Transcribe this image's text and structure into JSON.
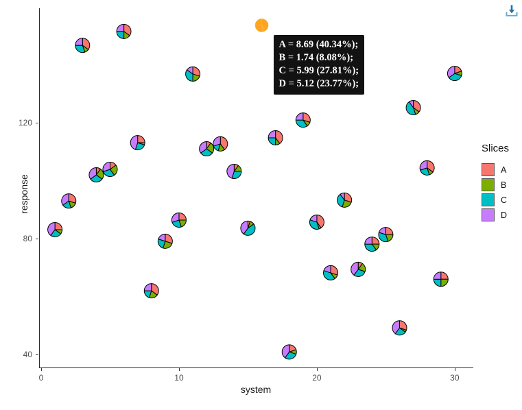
{
  "toolbar": {
    "download_icon": "arrow-down-into-tray",
    "download_color_arrow": "#2272b0",
    "download_color_tray": "#68a8d0"
  },
  "tooltip": {
    "lines": [
      "A = 8.69 (40.34%);",
      "B = 1.74 (8.08%);",
      "C = 5.99 (27.81%);",
      "D = 5.12 (23.77%);"
    ],
    "background": "#121212",
    "text_color": "#ffffff"
  },
  "chart_data": {
    "type": "scatter-pie",
    "title": "",
    "xlabel": "system",
    "ylabel": "response",
    "x_ticks": [
      0,
      10,
      20,
      30
    ],
    "y_ticks": [
      40,
      80,
      120
    ],
    "xlim": [
      -0.15,
      31.35
    ],
    "ylim": [
      35.3,
      159.5
    ],
    "grid": false,
    "legend": {
      "title": "Slices",
      "position": "right",
      "entries": [
        {
          "label": "A",
          "color": "#F8766D"
        },
        {
          "label": "B",
          "color": "#7CAE00"
        },
        {
          "label": "C",
          "color": "#00BFC4"
        },
        {
          "label": "D",
          "color": "#C77CFF"
        }
      ]
    },
    "highlight_color": "#FFA51E",
    "highlight_stroke": "#f5b84d",
    "pie_radius_px": 10.5,
    "points": [
      {
        "x": 1,
        "y": 83.1,
        "slices": [
          25,
          10,
          25,
          40
        ]
      },
      {
        "x": 2,
        "y": 93.0,
        "slices": [
          30,
          15,
          20,
          35
        ]
      },
      {
        "x": 3,
        "y": 146.7,
        "slices": [
          35,
          10,
          30,
          25
        ]
      },
      {
        "x": 4,
        "y": 102.0,
        "slices": [
          10,
          25,
          30,
          35
        ]
      },
      {
        "x": 5,
        "y": 103.9,
        "slices": [
          15,
          25,
          30,
          30
        ]
      },
      {
        "x": 6,
        "y": 151.5,
        "slices": [
          35,
          15,
          25,
          25
        ]
      },
      {
        "x": 7,
        "y": 113.1,
        "slices": [
          25,
          5,
          25,
          45
        ]
      },
      {
        "x": 8,
        "y": 62.0,
        "slices": [
          35,
          20,
          20,
          25
        ]
      },
      {
        "x": 9,
        "y": 79.1,
        "slices": [
          30,
          25,
          25,
          20
        ]
      },
      {
        "x": 10,
        "y": 86.4,
        "slices": [
          25,
          20,
          25,
          30
        ]
      },
      {
        "x": 11,
        "y": 136.8,
        "slices": [
          30,
          20,
          35,
          15
        ]
      },
      {
        "x": 12,
        "y": 111.0,
        "slices": [
          10,
          25,
          30,
          35
        ]
      },
      {
        "x": 13,
        "y": 112.7,
        "slices": [
          40,
          15,
          15,
          30
        ]
      },
      {
        "x": 14,
        "y": 103.2,
        "slices": [
          10,
          15,
          30,
          45
        ]
      },
      {
        "x": 15,
        "y": 83.6,
        "slices": [
          5,
          10,
          45,
          40
        ]
      },
      {
        "x": 16,
        "y": 153.6,
        "slices": [
          40.34,
          8.08,
          27.81,
          23.77
        ],
        "highlighted": true,
        "values": {
          "A": 8.69,
          "B": 1.74,
          "C": 5.99,
          "D": 5.12
        }
      },
      {
        "x": 17,
        "y": 114.8,
        "slices": [
          40,
          10,
          25,
          25
        ]
      },
      {
        "x": 18,
        "y": 40.9,
        "slices": [
          20,
          10,
          30,
          40
        ]
      },
      {
        "x": 19,
        "y": 120.9,
        "slices": [
          30,
          10,
          35,
          25
        ]
      },
      {
        "x": 20,
        "y": 85.7,
        "slices": [
          40,
          5,
          35,
          20
        ]
      },
      {
        "x": 21,
        "y": 68.2,
        "slices": [
          30,
          10,
          40,
          20
        ]
      },
      {
        "x": 22,
        "y": 93.3,
        "slices": [
          30,
          25,
          35,
          10
        ]
      },
      {
        "x": 23,
        "y": 69.4,
        "slices": [
          10,
          20,
          30,
          40
        ]
      },
      {
        "x": 24,
        "y": 78.1,
        "slices": [
          25,
          15,
          35,
          25
        ]
      },
      {
        "x": 25,
        "y": 81.4,
        "slices": [
          25,
          20,
          35,
          20
        ]
      },
      {
        "x": 26,
        "y": 49.2,
        "slices": [
          30,
          5,
          25,
          40
        ]
      },
      {
        "x": 27,
        "y": 125.2,
        "slices": [
          35,
          10,
          45,
          10
        ]
      },
      {
        "x": 28,
        "y": 104.4,
        "slices": [
          35,
          10,
          25,
          30
        ]
      },
      {
        "x": 29,
        "y": 66.0,
        "slices": [
          25,
          25,
          25,
          25
        ]
      },
      {
        "x": 30,
        "y": 137.0,
        "slices": [
          20,
          10,
          35,
          35
        ]
      }
    ]
  }
}
